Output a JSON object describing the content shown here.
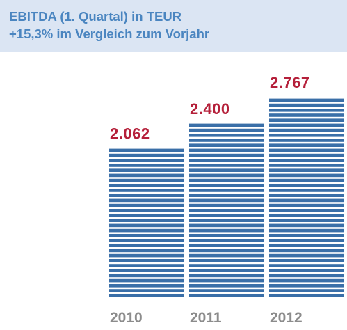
{
  "header": {
    "title": "EBITDA (1. Quartal) in TEUR",
    "subtitle": "+15,3% im Vergleich zum Vorjahr"
  },
  "colors": {
    "header_bg": "#dbe5f3",
    "header_text": "#4a85c0",
    "bar": "#3a6fa8",
    "value_label": "#b5203a",
    "axis_label": "#8c8c8c"
  },
  "chart_data": {
    "type": "bar",
    "categories": [
      "2010",
      "2011",
      "2012"
    ],
    "values": [
      2062,
      2400,
      2767
    ],
    "value_labels": [
      "2.062",
      "2.400",
      "2.767"
    ],
    "title": "EBITDA (1. Quartal) in TEUR",
    "subtitle": "+15,3% im Vergleich zum Vorjahr",
    "xlabel": "",
    "ylabel": "",
    "grid": false,
    "legend": "none"
  }
}
